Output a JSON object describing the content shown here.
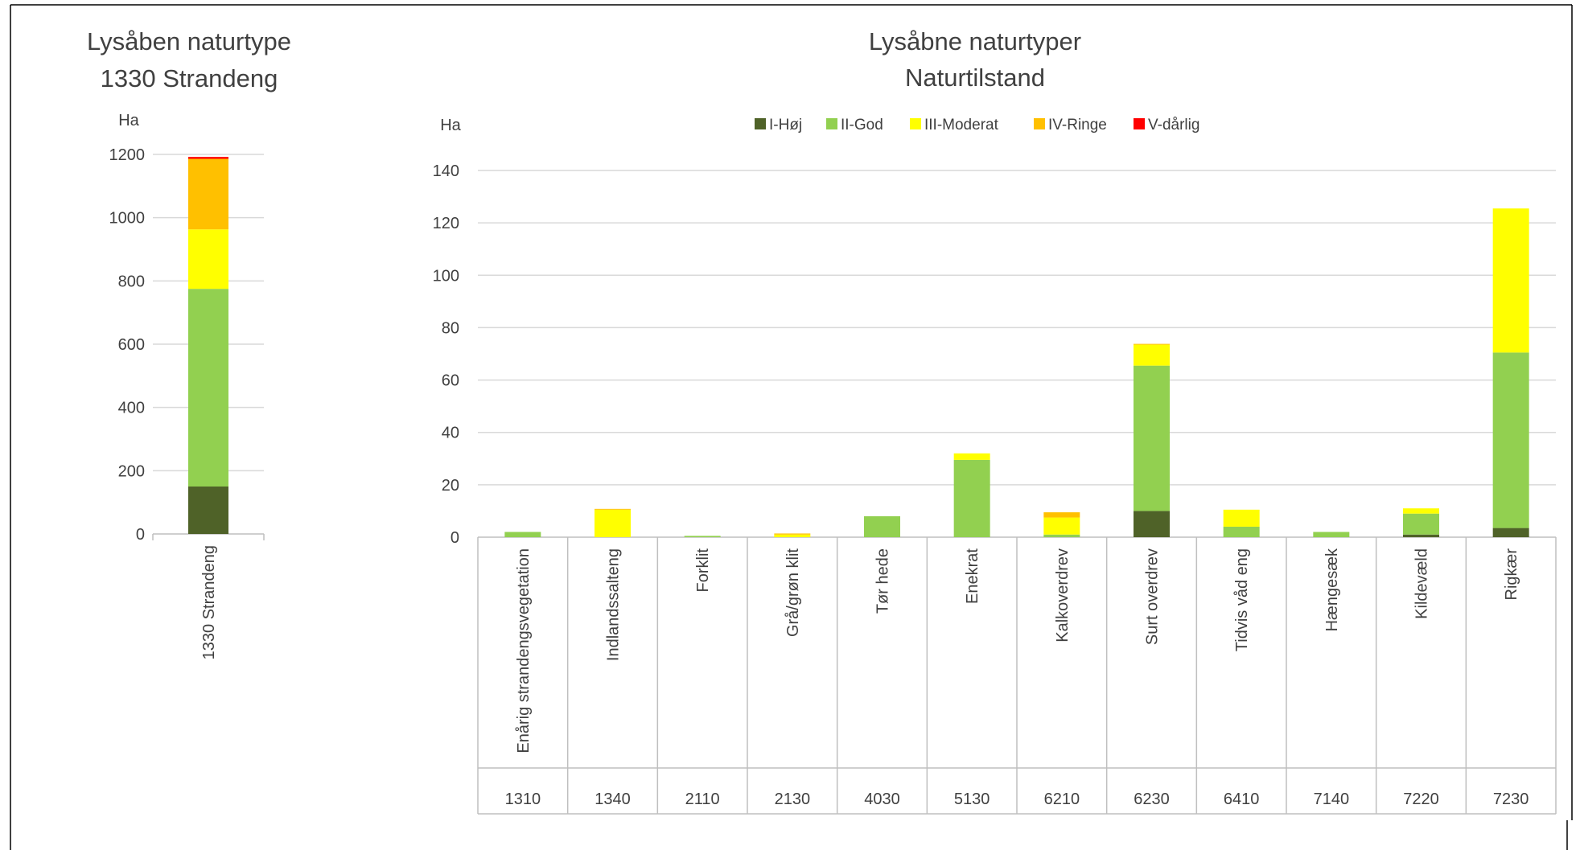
{
  "chart_data": [
    {
      "type": "bar",
      "stacked": true,
      "title_lines": [
        "Lysåben naturtype",
        "1330 Strandeng"
      ],
      "ylabel": "Ha",
      "ylim": [
        0,
        1200
      ],
      "yticks": [
        0,
        200,
        400,
        600,
        800,
        1000,
        1200
      ],
      "grid": true,
      "categories": [
        "1330 Strandeng"
      ],
      "series": [
        {
          "name": "I-Høj",
          "color": "#4f6228",
          "values": [
            150
          ]
        },
        {
          "name": "II-God",
          "color": "#92d050",
          "values": [
            625
          ]
        },
        {
          "name": "III-Moderat",
          "color": "#ffff00",
          "values": [
            188
          ]
        },
        {
          "name": "IV-Ringe",
          "color": "#ffc000",
          "values": [
            223
          ]
        },
        {
          "name": "V-dårlig",
          "color": "#ff0000",
          "values": [
            6
          ]
        }
      ]
    },
    {
      "type": "bar",
      "stacked": true,
      "title_lines": [
        "Lysåbne naturtyper",
        "Naturtilstand"
      ],
      "ylabel": "Ha",
      "ylim": [
        0,
        140
      ],
      "yticks": [
        0,
        20,
        40,
        60,
        80,
        100,
        120,
        140
      ],
      "grid": true,
      "legend_position": "top",
      "categories": [
        "Enårig strandengsvegetation",
        "Indlandssalteng",
        "Forklit",
        "Grå/grøn klit",
        "Tør hede",
        "Enekrat",
        "Kalkoverdrev",
        "Surt overdrev",
        "Tidvis våd eng",
        "Hængesæk",
        "Kildevæld",
        "Rigkær"
      ],
      "category_codes": [
        "1310",
        "1340",
        "2110",
        "2130",
        "4030",
        "5130",
        "6210",
        "6230",
        "6410",
        "7140",
        "7220",
        "7230"
      ],
      "series": [
        {
          "name": "I-Høj",
          "color": "#4f6228",
          "values": [
            0,
            0,
            0,
            0,
            0,
            0,
            0,
            10,
            0,
            0,
            1,
            3.5
          ]
        },
        {
          "name": "II-God",
          "color": "#92d050",
          "values": [
            2,
            0,
            0.5,
            0,
            8,
            29.5,
            1,
            55.5,
            4,
            2,
            8,
            67
          ]
        },
        {
          "name": "III-Moderat",
          "color": "#ffff00",
          "values": [
            0,
            10.5,
            0,
            1,
            0,
            2.5,
            6.5,
            8,
            6.5,
            0,
            2,
            55
          ]
        },
        {
          "name": "IV-Ringe",
          "color": "#ffc000",
          "values": [
            0,
            0.3,
            0,
            0.4,
            0,
            0,
            2,
            0.3,
            0,
            0,
            0,
            0
          ]
        },
        {
          "name": "V-dårlig",
          "color": "#ff0000",
          "values": [
            0,
            0,
            0,
            0,
            0,
            0,
            0,
            0,
            0,
            0,
            0,
            0
          ]
        }
      ]
    }
  ]
}
